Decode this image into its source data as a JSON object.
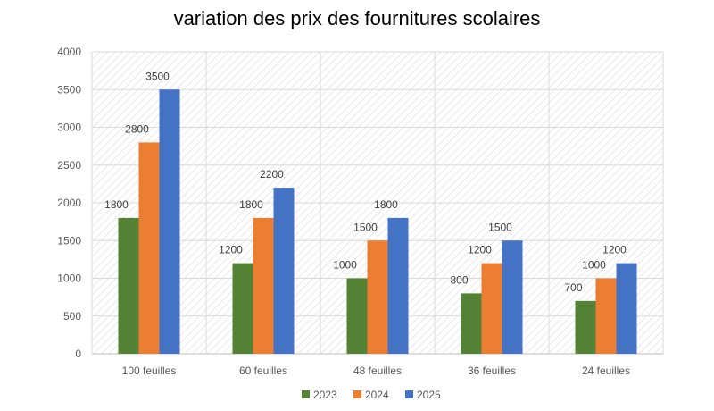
{
  "chart_data": {
    "type": "bar",
    "title": "variation des prix des fournitures scolaires",
    "xlabel": "",
    "ylabel": "",
    "categories": [
      "100 feuilles",
      "60 feuilles",
      "48 feuilles",
      "36 feuilles",
      "24 feuilles"
    ],
    "series": [
      {
        "name": "2023",
        "color": "#548235",
        "values": [
          1800,
          1200,
          1000,
          800,
          700
        ]
      },
      {
        "name": "2024",
        "color": "#ED7D31",
        "values": [
          2800,
          1800,
          1500,
          1200,
          1000
        ]
      },
      {
        "name": "2025",
        "color": "#4472C4",
        "values": [
          3500,
          2200,
          1800,
          1500,
          1200
        ]
      }
    ],
    "ylim": [
      0,
      4000
    ],
    "yticks": [
      0,
      500,
      1000,
      1500,
      2000,
      2500,
      3000,
      3500,
      4000
    ],
    "grid": true,
    "legend_position": "bottom",
    "data_labels": true
  }
}
